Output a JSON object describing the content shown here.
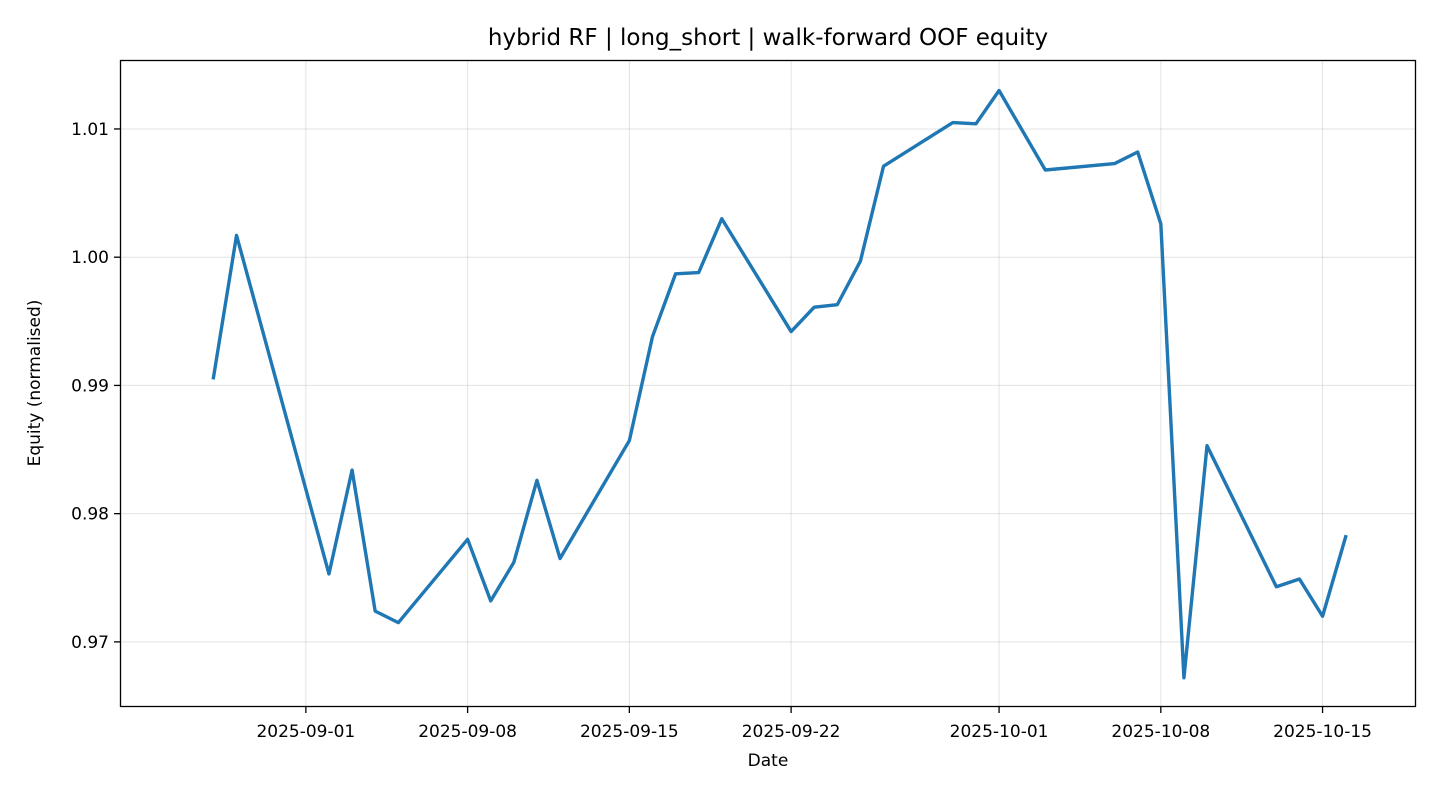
{
  "chart_data": {
    "type": "line",
    "title": "hybrid RF | long_short | walk-forward OOF equity",
    "xlabel": "Date",
    "ylabel": "Equity (normalised)",
    "xlim": [
      "2025-08-24",
      "2025-10-19"
    ],
    "ylim": [
      0.965,
      1.0153
    ],
    "grid": true,
    "line_color": "#1f77b4",
    "x_ticks": [
      "2025-09-01",
      "2025-09-08",
      "2025-09-15",
      "2025-09-22",
      "2025-10-01",
      "2025-10-08",
      "2025-10-15"
    ],
    "y_ticks": [
      0.97,
      0.98,
      0.99,
      1.0,
      1.01
    ],
    "y_tick_labels": [
      "0.97",
      "0.98",
      "0.99",
      "1.00",
      "1.01"
    ],
    "series": [
      {
        "points": [
          {
            "x": "2025-08-28",
            "y": 0.9906
          },
          {
            "x": "2025-08-29",
            "y": 1.0017
          },
          {
            "x": "2025-09-02",
            "y": 0.9753
          },
          {
            "x": "2025-09-03",
            "y": 0.9834
          },
          {
            "x": "2025-09-04",
            "y": 0.9724
          },
          {
            "x": "2025-09-05",
            "y": 0.9715
          },
          {
            "x": "2025-09-08",
            "y": 0.978
          },
          {
            "x": "2025-09-09",
            "y": 0.9732
          },
          {
            "x": "2025-09-10",
            "y": 0.9762
          },
          {
            "x": "2025-09-11",
            "y": 0.9826
          },
          {
            "x": "2025-09-12",
            "y": 0.9765
          },
          {
            "x": "2025-09-15",
            "y": 0.9857
          },
          {
            "x": "2025-09-16",
            "y": 0.9938
          },
          {
            "x": "2025-09-17",
            "y": 0.9987
          },
          {
            "x": "2025-09-18",
            "y": 0.9988
          },
          {
            "x": "2025-09-19",
            "y": 1.003
          },
          {
            "x": "2025-09-22",
            "y": 0.9942
          },
          {
            "x": "2025-09-23",
            "y": 0.9961
          },
          {
            "x": "2025-09-24",
            "y": 0.9963
          },
          {
            "x": "2025-09-25",
            "y": 0.9997
          },
          {
            "x": "2025-09-26",
            "y": 1.0071
          },
          {
            "x": "2025-09-29",
            "y": 1.0105
          },
          {
            "x": "2025-09-30",
            "y": 1.0104
          },
          {
            "x": "2025-10-01",
            "y": 1.013
          },
          {
            "x": "2025-10-03",
            "y": 1.0068
          },
          {
            "x": "2025-10-06",
            "y": 1.0073
          },
          {
            "x": "2025-10-07",
            "y": 1.0082
          },
          {
            "x": "2025-10-08",
            "y": 1.0026
          },
          {
            "x": "2025-10-09",
            "y": 0.9672
          },
          {
            "x": "2025-10-10",
            "y": 0.9853
          },
          {
            "x": "2025-10-13",
            "y": 0.9743
          },
          {
            "x": "2025-10-14",
            "y": 0.9749
          },
          {
            "x": "2025-10-15",
            "y": 0.972
          },
          {
            "x": "2025-10-16",
            "y": 0.9782
          }
        ]
      }
    ]
  }
}
